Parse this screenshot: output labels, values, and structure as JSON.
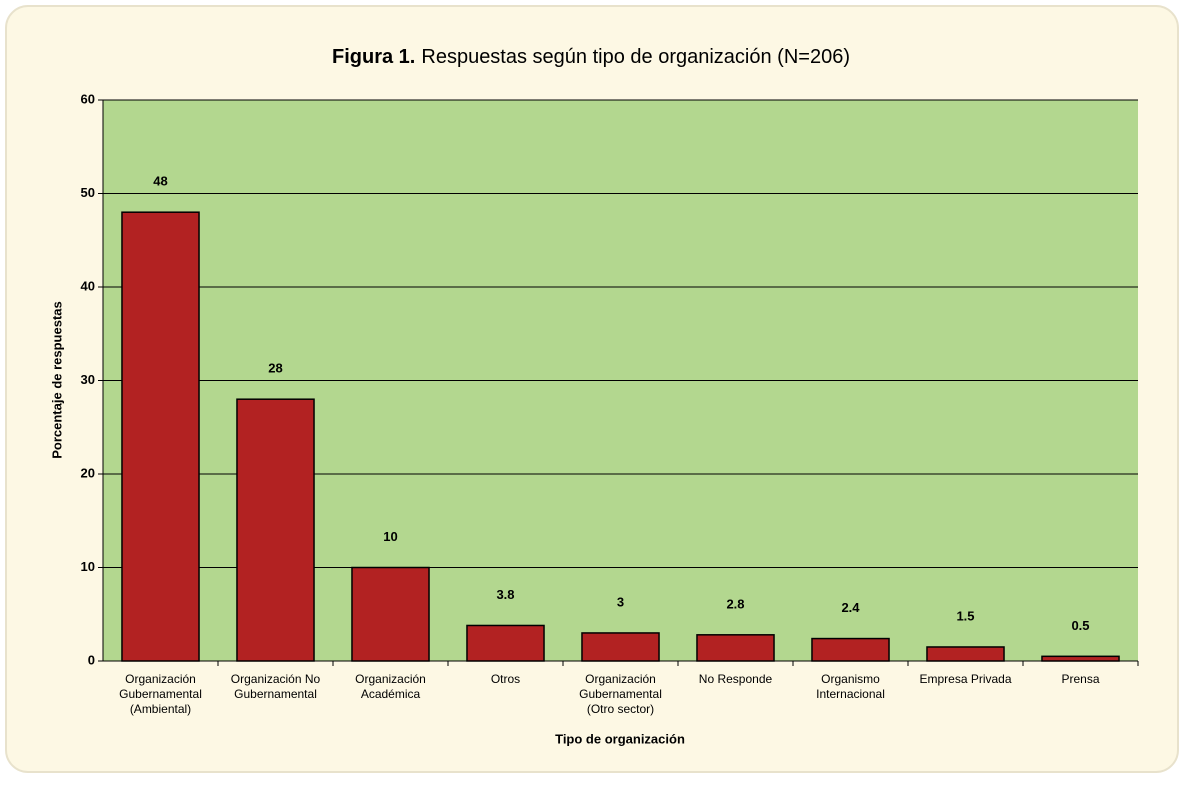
{
  "chart_data": {
    "type": "bar",
    "title_prefix": "Figura 1.",
    "title": "Respuestas según tipo de organización (N=206)",
    "xlabel": "Tipo de organización",
    "ylabel": "Porcentaje de respuestas",
    "categories": [
      "Organización\nGubernamental\n(Ambiental)",
      "Organización No\nGubernamental",
      "Organización\nAcadémica",
      "Otros",
      "Organización\nGubernamental\n(Otro sector)",
      "No Responde",
      "Organismo\nInternacional",
      "Empresa Privada",
      "Prensa"
    ],
    "values": [
      48,
      28,
      10,
      3.8,
      3,
      2.8,
      2.4,
      1.5,
      0.5
    ],
    "color": "#b22222",
    "ylim": [
      0,
      60
    ],
    "yticks": [
      0,
      10,
      20,
      30,
      40,
      50,
      60
    ],
    "grid": true
  }
}
